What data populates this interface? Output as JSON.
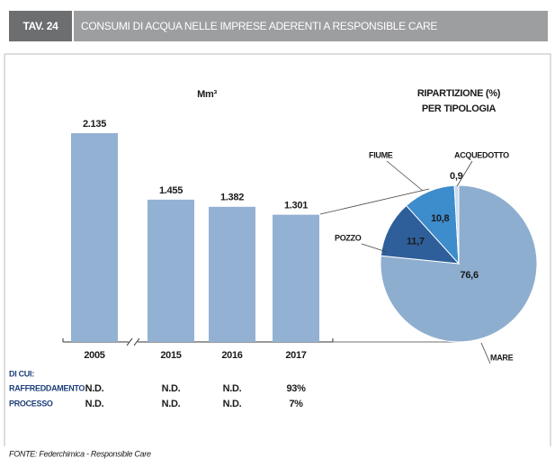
{
  "header": {
    "tag": "TAV. 24",
    "title": "CONSUMI DI ACQUA NELLE IMPRESE ADERENTI A RESPONSIBLE CARE"
  },
  "chart_data": [
    {
      "type": "bar",
      "unit": "Mm³",
      "categories": [
        "2005",
        "2015",
        "2016",
        "2017"
      ],
      "values": [
        2135,
        1455,
        1382,
        1301
      ],
      "value_labels": [
        "2.135",
        "1.455",
        "1.382",
        "1.301"
      ],
      "color": "#93b1d3"
    },
    {
      "type": "pie",
      "title_lines": [
        "RIPARTIZIONE (%)",
        "PER TIPOLOGIA"
      ],
      "categories": [
        "MARE",
        "POZZO",
        "FIUME",
        "ACQUEDOTTO"
      ],
      "values": [
        76.6,
        11.7,
        10.8,
        0.9
      ],
      "value_labels": [
        "76,6",
        "11,7",
        "10,8",
        "0,9"
      ],
      "colors": [
        "#8eaed0",
        "#2e5f9a",
        "#3d8ccc",
        "#c8dbef"
      ]
    }
  ],
  "table": {
    "heading": "DI CUI:",
    "rows": [
      [
        "RAFFREDDAMENTO",
        "N.D.",
        "N.D.",
        "N.D.",
        "93%"
      ],
      [
        "PROCESSO",
        "N.D.",
        "N.D.",
        "N.D.",
        "7%"
      ]
    ]
  },
  "source": "FONTE: Federchimica - Responsible Care"
}
